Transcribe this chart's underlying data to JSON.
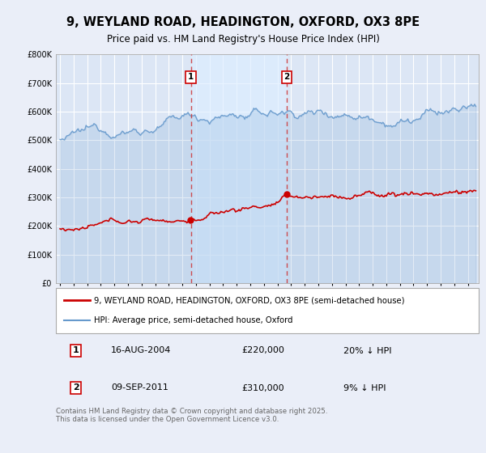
{
  "title": "9, WEYLAND ROAD, HEADINGTON, OXFORD, OX3 8PE",
  "subtitle": "Price paid vs. HM Land Registry's House Price Index (HPI)",
  "background_color": "#eaeef8",
  "plot_bg_color": "#dce6f5",
  "grid_color": "#ffffff",
  "red_line_label": "9, WEYLAND ROAD, HEADINGTON, OXFORD, OX3 8PE (semi-detached house)",
  "blue_line_label": "HPI: Average price, semi-detached house, Oxford",
  "transaction1_date": "16-AUG-2004",
  "transaction1_price": "£220,000",
  "transaction1_hpi": "20% ↓ HPI",
  "transaction2_date": "09-SEP-2011",
  "transaction2_price": "£310,000",
  "transaction2_hpi": "9% ↓ HPI",
  "footer": "Contains HM Land Registry data © Crown copyright and database right 2025.\nThis data is licensed under the Open Government Licence v3.0.",
  "vline1_x": 2004.62,
  "vline2_x": 2011.69,
  "ylim": [
    0,
    800000
  ],
  "yticks": [
    0,
    100000,
    200000,
    300000,
    400000,
    500000,
    600000,
    700000,
    800000
  ],
  "ytick_labels": [
    "£0",
    "£100K",
    "£200K",
    "£300K",
    "£400K",
    "£500K",
    "£600K",
    "£700K",
    "£800K"
  ],
  "red_color": "#cc0000",
  "blue_color": "#6699cc",
  "vline_color": "#cc3333",
  "dot_color": "#cc0000",
  "span_color": "#ddeeff",
  "xlim_start": 1994.7,
  "xlim_end": 2025.8
}
